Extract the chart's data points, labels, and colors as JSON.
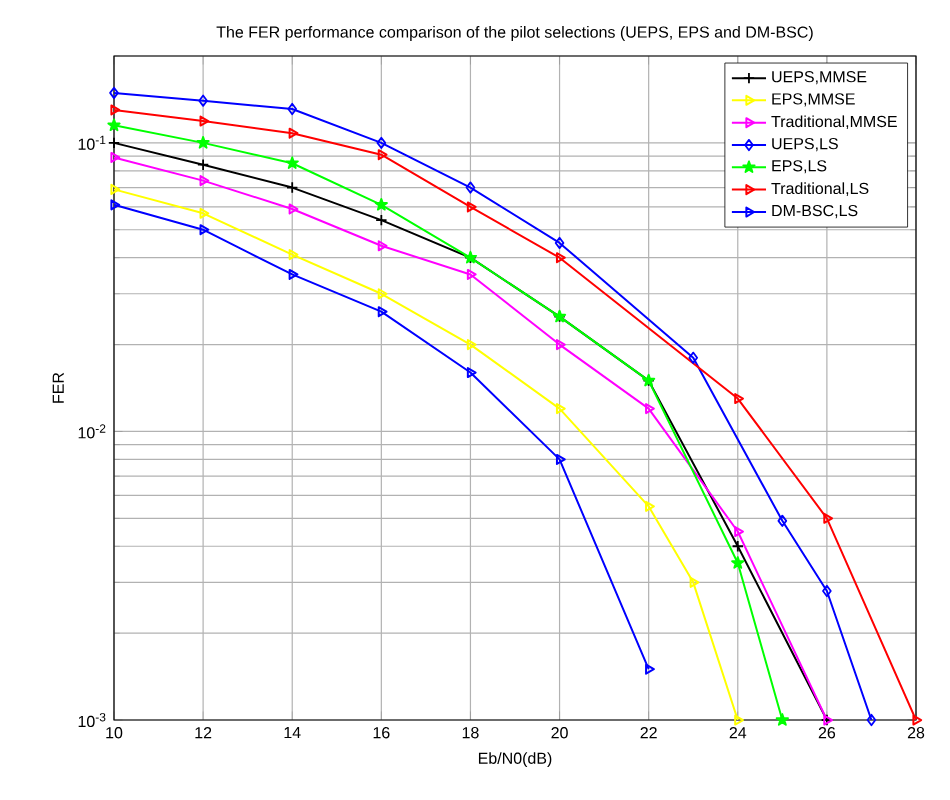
{
  "chart_data": {
    "type": "line",
    "title": "The FER performance comparison of the pilot selections (UEPS, EPS and DM-BSC)",
    "xlabel": "Eb/N0(dB)",
    "ylabel": "FER",
    "log": "y",
    "grid": true,
    "legend": "top right",
    "xlim": [
      10,
      28
    ],
    "xticks": [
      10,
      12,
      14,
      16,
      18,
      20,
      22,
      24,
      26,
      28
    ],
    "ylim": [
      0.001,
      0.2
    ],
    "yticks": [
      {
        "value": 0.001,
        "label": "10$^{-3}$"
      },
      {
        "value": 0.01,
        "label": "10$^{-2}$"
      },
      {
        "value": 0.1,
        "label": "10$^{-1}$"
      }
    ],
    "series": [
      {
        "name": "UEPS,MMSE",
        "color": "#000000",
        "marker": "cross",
        "x": [
          10,
          12,
          14,
          16,
          18,
          20,
          22,
          24,
          26
        ],
        "values": [
          0.1,
          0.084,
          0.07,
          0.054,
          0.04,
          0.025,
          0.015,
          0.004,
          0.001
        ]
      },
      {
        "name": "EPS,MMSE",
        "color": "#ffff00",
        "marker": "triangle",
        "x": [
          10,
          12,
          14,
          16,
          18,
          20,
          22,
          23,
          24
        ],
        "values": [
          0.069,
          0.057,
          0.041,
          0.03,
          0.02,
          0.012,
          0.0055,
          0.003,
          0.001
        ]
      },
      {
        "name": "Traditional,MMSE",
        "color": "#ff00ff",
        "marker": "triangle",
        "x": [
          10,
          12,
          14,
          16,
          18,
          20,
          22,
          24,
          26
        ],
        "values": [
          0.089,
          0.074,
          0.059,
          0.044,
          0.035,
          0.02,
          0.012,
          0.0045,
          0.001
        ]
      },
      {
        "name": "UEPS,LS",
        "color": "#0000ff",
        "marker": "diamond",
        "x": [
          10,
          12,
          14,
          16,
          18,
          20,
          23,
          25,
          26,
          27
        ],
        "values": [
          0.149,
          0.14,
          0.131,
          0.1,
          0.07,
          0.045,
          0.018,
          0.0049,
          0.0028,
          0.001
        ]
      },
      {
        "name": "EPS,LS",
        "color": "#00ff00",
        "marker": "star",
        "x": [
          10,
          12,
          14,
          16,
          18,
          20,
          22,
          24,
          25
        ],
        "values": [
          0.115,
          0.1,
          0.085,
          0.061,
          0.04,
          0.025,
          0.015,
          0.0035,
          0.001
        ]
      },
      {
        "name": "Traditional,LS",
        "color": "#ff0000",
        "marker": "triangle",
        "x": [
          10,
          12,
          14,
          16,
          18,
          20,
          24,
          26,
          28
        ],
        "values": [
          0.13,
          0.119,
          0.108,
          0.091,
          0.06,
          0.04,
          0.013,
          0.005,
          0.001
        ]
      },
      {
        "name": "DM-BSC,LS",
        "color": "#0000ff",
        "marker": "triangle",
        "x": [
          10,
          12,
          14,
          16,
          18,
          20,
          22
        ],
        "values": [
          0.061,
          0.05,
          0.035,
          0.026,
          0.016,
          0.008,
          0.0015
        ]
      }
    ]
  }
}
